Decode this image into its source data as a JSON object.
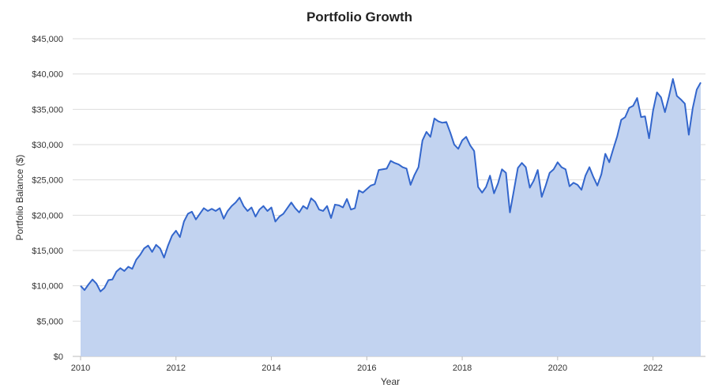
{
  "chart_data": {
    "type": "area",
    "title": "Portfolio Growth",
    "xlabel": "Year",
    "ylabel": "Portfolio Balance ($)",
    "xlim": [
      2010,
      2023
    ],
    "ylim": [
      0,
      45000
    ],
    "x_ticks": [
      {
        "value": 2010,
        "label": "2010"
      },
      {
        "value": 2012,
        "label": "2012"
      },
      {
        "value": 2014,
        "label": "2014"
      },
      {
        "value": 2016,
        "label": "2016"
      },
      {
        "value": 2018,
        "label": "2018"
      },
      {
        "value": 2020,
        "label": "2020"
      },
      {
        "value": 2022,
        "label": "2022"
      }
    ],
    "y_ticks": [
      {
        "value": 0,
        "label": "$0"
      },
      {
        "value": 5000,
        "label": "$5,000"
      },
      {
        "value": 10000,
        "label": "$10,000"
      },
      {
        "value": 15000,
        "label": "$15,000"
      },
      {
        "value": 20000,
        "label": "$20,000"
      },
      {
        "value": 25000,
        "label": "$25,000"
      },
      {
        "value": 30000,
        "label": "$30,000"
      },
      {
        "value": 35000,
        "label": "$35,000"
      },
      {
        "value": 40000,
        "label": "$40,000"
      },
      {
        "value": 45000,
        "label": "$45,000"
      }
    ],
    "grid": true,
    "legend": "none",
    "colors": {
      "line": "#3366cc",
      "fill": "#c2d3f0"
    },
    "series": [
      {
        "x": [
          2010.0,
          2010.083,
          2010.167,
          2010.25,
          2010.333,
          2010.417,
          2010.5,
          2010.583,
          2010.667,
          2010.75,
          2010.833,
          2010.917,
          2011.0,
          2011.083,
          2011.167,
          2011.25,
          2011.333,
          2011.417,
          2011.5,
          2011.583,
          2011.667,
          2011.75,
          2011.833,
          2011.917,
          2012.0,
          2012.083,
          2012.167,
          2012.25,
          2012.333,
          2012.417,
          2012.5,
          2012.583,
          2012.667,
          2012.75,
          2012.833,
          2012.917,
          2013.0,
          2013.083,
          2013.167,
          2013.25,
          2013.333,
          2013.417,
          2013.5,
          2013.583,
          2013.667,
          2013.75,
          2013.833,
          2013.917,
          2014.0,
          2014.083,
          2014.167,
          2014.25,
          2014.333,
          2014.417,
          2014.5,
          2014.583,
          2014.667,
          2014.75,
          2014.833,
          2014.917,
          2015.0,
          2015.083,
          2015.167,
          2015.25,
          2015.333,
          2015.417,
          2015.5,
          2015.583,
          2015.667,
          2015.75,
          2015.833,
          2015.917,
          2016.0,
          2016.083,
          2016.167,
          2016.25,
          2016.333,
          2016.417,
          2016.5,
          2016.583,
          2016.667,
          2016.75,
          2016.833,
          2016.917,
          2017.0,
          2017.083,
          2017.167,
          2017.25,
          2017.333,
          2017.417,
          2017.5,
          2017.583,
          2017.667,
          2017.75,
          2017.833,
          2017.917,
          2018.0,
          2018.083,
          2018.167,
          2018.25,
          2018.333,
          2018.417,
          2018.5,
          2018.583,
          2018.667,
          2018.75,
          2018.833,
          2018.917,
          2019.0,
          2019.083,
          2019.167,
          2019.25,
          2019.333,
          2019.417,
          2019.5,
          2019.583,
          2019.667,
          2019.75,
          2019.833,
          2019.917,
          2020.0,
          2020.083,
          2020.167,
          2020.25,
          2020.333,
          2020.417,
          2020.5,
          2020.583,
          2020.667,
          2020.75,
          2020.833,
          2020.917,
          2021.0,
          2021.083,
          2021.167,
          2021.25,
          2021.333,
          2021.417,
          2021.5,
          2021.583,
          2021.667,
          2021.75,
          2021.833,
          2021.917,
          2022.0,
          2022.083,
          2022.167,
          2022.25,
          2022.333,
          2022.417,
          2022.5,
          2022.583,
          2022.667,
          2022.75,
          2022.833,
          2022.917,
          2023.0
        ],
        "values": [
          10000,
          9400,
          10200,
          10900,
          10300,
          9200,
          9700,
          10800,
          10900,
          12000,
          12500,
          12100,
          12700,
          12400,
          13700,
          14400,
          15300,
          15700,
          14800,
          15800,
          15300,
          14000,
          15700,
          17100,
          17800,
          16900,
          19100,
          20200,
          20500,
          19400,
          20200,
          21000,
          20600,
          20900,
          20600,
          21000,
          19500,
          20600,
          21300,
          21800,
          22500,
          21300,
          20600,
          21100,
          19800,
          20800,
          21300,
          20600,
          21100,
          19100,
          19800,
          20200,
          21000,
          21800,
          21000,
          20400,
          21300,
          20900,
          22400,
          21900,
          20800,
          20600,
          21300,
          19600,
          21500,
          21400,
          21100,
          22300,
          20800,
          21000,
          23500,
          23200,
          23700,
          24200,
          24400,
          26400,
          26500,
          26600,
          27700,
          27400,
          27200,
          26800,
          26600,
          24300,
          25700,
          26800,
          30600,
          31800,
          31100,
          33700,
          33300,
          33100,
          33200,
          31700,
          30000,
          29400,
          30600,
          31100,
          29900,
          29100,
          24000,
          23200,
          24000,
          25600,
          23100,
          24500,
          26500,
          26000,
          20400,
          23500,
          26700,
          27400,
          26800,
          23900,
          24900,
          26400,
          22600,
          24200,
          26000,
          26500,
          27500,
          26800,
          26500,
          24100,
          24600,
          24300,
          23600,
          25600,
          26800,
          25400,
          24200,
          25800,
          28700,
          27500,
          29400,
          31200,
          33500,
          33900,
          35200,
          35500,
          36600,
          33900,
          34000,
          30900,
          34800,
          37400,
          36700,
          34600,
          36800,
          39300,
          36900,
          36400,
          35800,
          31400,
          35200,
          37800,
          38800
        ]
      }
    ]
  }
}
